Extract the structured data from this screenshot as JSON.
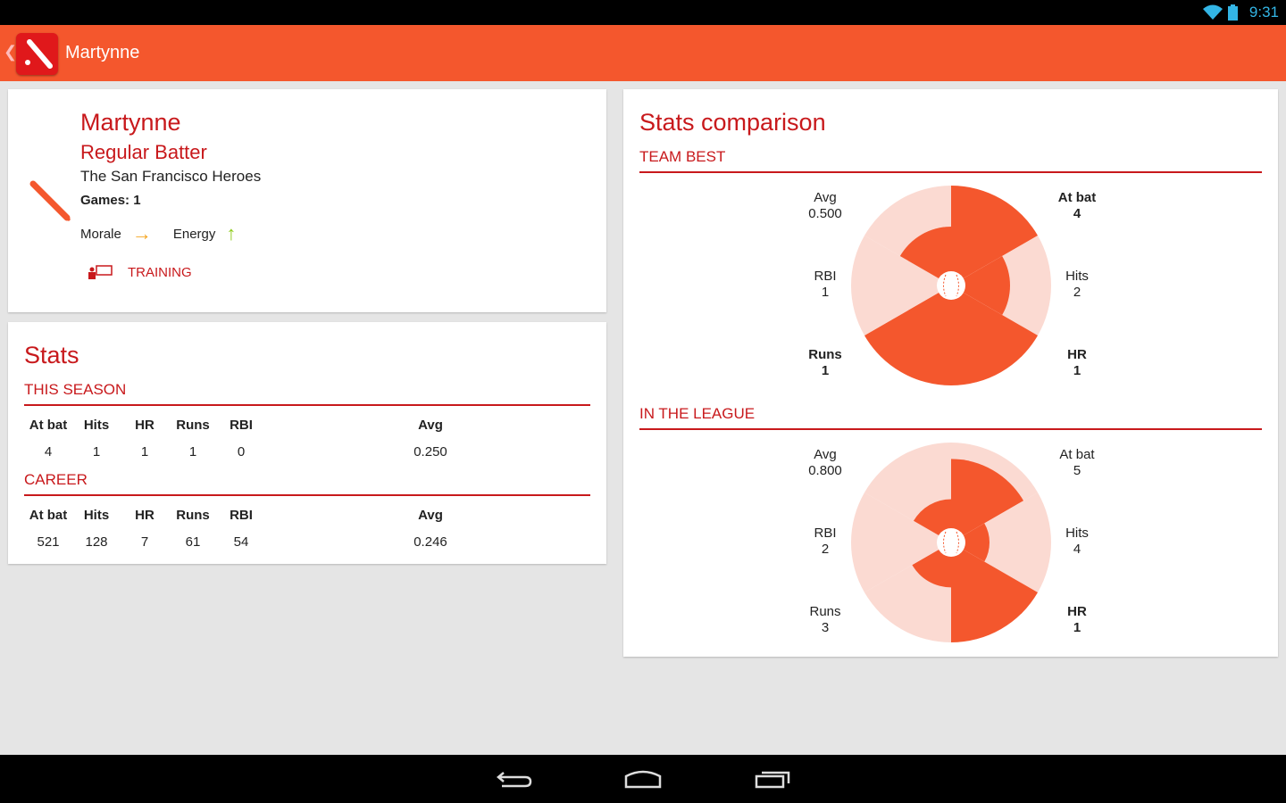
{
  "status": {
    "time": "9:31",
    "icons": [
      "wifi-icon",
      "battery-charging-icon"
    ]
  },
  "actionbar": {
    "title": "Martynne",
    "icon": "baseball-bat-icon"
  },
  "colors": {
    "accent": "#f4572d",
    "red": "#c8191c",
    "light": "#fbdad2",
    "morale": "#f5a623",
    "energy": "#8fcc1e"
  },
  "player": {
    "name": "Martynne",
    "role": "Regular Batter",
    "team": "The San Francisco Heroes",
    "games": "Games: 1",
    "morale_label": "Morale",
    "morale_icon": "arrow-right-icon",
    "energy_label": "Energy",
    "energy_icon": "arrow-up-icon",
    "training_label": "TRAINING"
  },
  "stats": {
    "title": "Stats",
    "season_label": "THIS SEASON",
    "career_label": "CAREER",
    "headers": [
      "At bat",
      "Hits",
      "HR",
      "Runs",
      "RBI",
      "Avg"
    ],
    "season": [
      "4",
      "1",
      "1",
      "1",
      "0",
      "0.250"
    ],
    "career": [
      "521",
      "128",
      "7",
      "61",
      "54",
      "0.246"
    ]
  },
  "comparison": {
    "title": "Stats comparison",
    "charts": [
      {
        "label": "TEAM BEST",
        "stats": [
          {
            "name": "At bat",
            "value": "4",
            "fraction": 1,
            "bold": true
          },
          {
            "name": "Hits",
            "value": "2",
            "fraction": 0.5,
            "bold": false
          },
          {
            "name": "HR",
            "value": "1",
            "fraction": 1,
            "bold": true
          },
          {
            "name": "Runs",
            "value": "1",
            "fraction": 1,
            "bold": true
          },
          {
            "name": "RBI",
            "value": "1",
            "fraction": 0,
            "bold": false
          },
          {
            "name": "Avg",
            "value": "0.500",
            "fraction": 0.5,
            "bold": false
          }
        ]
      },
      {
        "label": "IN THE LEAGUE",
        "stats": [
          {
            "name": "At bat",
            "value": "5",
            "fraction": 0.8,
            "bold": false
          },
          {
            "name": "Hits",
            "value": "4",
            "fraction": 0.25,
            "bold": false
          },
          {
            "name": "HR",
            "value": "1",
            "fraction": 1,
            "bold": true
          },
          {
            "name": "Runs",
            "value": "3",
            "fraction": 0.33,
            "bold": false
          },
          {
            "name": "RBI",
            "value": "2",
            "fraction": 0,
            "bold": false
          },
          {
            "name": "Avg",
            "value": "0.800",
            "fraction": 0.31,
            "bold": false
          }
        ]
      }
    ]
  },
  "nav": [
    "back-icon",
    "home-icon",
    "recent-apps-icon"
  ]
}
